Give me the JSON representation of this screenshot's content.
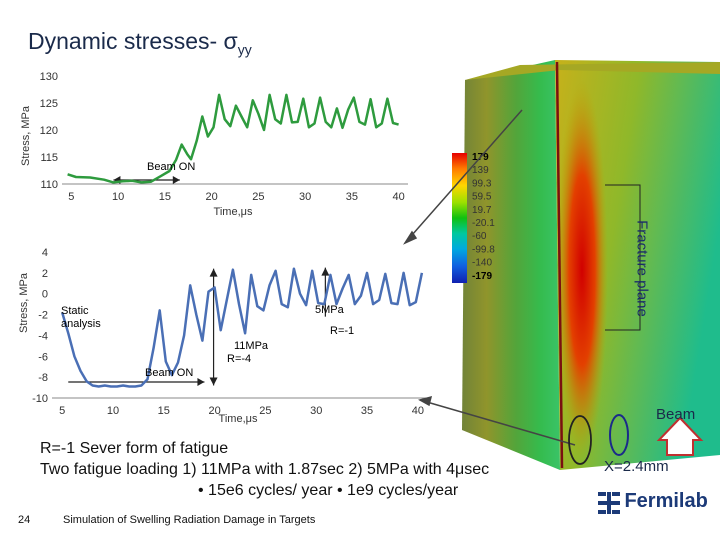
{
  "slide": {
    "title": "Dynamic stresses- σ",
    "title_subscript": "yy",
    "slide_number": "24",
    "footer": "Simulation of Swelling Radiation Damage in Targets",
    "logo_text": "Fermilab",
    "bottom_lines": [
      "R=-1 Sever form of fatigue",
      "Two fatigue loading 1) 11MPa with 1.87sec 2) 5MPa with 4μsec",
      "•  15e6  cycles/ year     •   1e9  cycles/year"
    ],
    "beam_label": "Beam",
    "x_label": "X=2.4mm",
    "fracture_plane": "Fracture plane",
    "legend_values": [
      "179",
      "139",
      "99.3",
      "59.5",
      "19.7",
      "-20.1",
      "-60",
      "-99.8",
      "-140",
      "-179"
    ]
  },
  "chart_data": [
    {
      "type": "line",
      "ylabel": "Stress, MPa",
      "xlabel": "Time,μs",
      "xlim": [
        4,
        41
      ],
      "ylim": [
        110,
        130
      ],
      "xticks": [
        "5",
        "10",
        "15",
        "20",
        "25",
        "30",
        "35",
        "40"
      ],
      "yticks": [
        "110",
        "115",
        "120",
        "125",
        "130"
      ],
      "annotation": "Beam ON",
      "series": [
        {
          "color": "#2e9b3e",
          "x": [
            4.6,
            5.5,
            7,
            8.5,
            9.5,
            10.5,
            11.5,
            12.5,
            13.5,
            14.5,
            15.5,
            16.2,
            16.8,
            17.4,
            17.8,
            18.4,
            19,
            19.6,
            20.2,
            20.8,
            21.4,
            22,
            22.6,
            23.2,
            23.8,
            24.4,
            25,
            25.6,
            26.2,
            26.8,
            27.4,
            28,
            28.6,
            29.2,
            29.8,
            30.4,
            31,
            31.6,
            32.2,
            32.8,
            33.4,
            34,
            34.6,
            35.2,
            35.8,
            36.4,
            37,
            37.6,
            38.2,
            38.8,
            39.4,
            40
          ],
          "y": [
            111.8,
            111.3,
            111.2,
            110.8,
            110.3,
            110.5,
            110.6,
            110.3,
            110.4,
            111.4,
            112.4,
            114.5,
            117.3,
            115.5,
            114.6,
            118.0,
            122.5,
            118.8,
            120.5,
            126.5,
            122.0,
            120.7,
            124.5,
            122.5,
            120.5,
            125.5,
            123.0,
            120.0,
            126.5,
            122.0,
            121.2,
            126.5,
            121.4,
            121.5,
            125.8,
            120.5,
            121.2,
            126.0,
            121.5,
            120.5,
            124.0,
            120.4,
            123.8,
            126.0,
            121.5,
            121.0,
            125.7,
            120.5,
            121.2,
            125.8,
            121.3,
            121.0
          ]
        }
      ]
    },
    {
      "type": "line",
      "ylabel": "Stress, MPa",
      "xlabel": "Time,μs",
      "xlim": [
        4,
        41
      ],
      "ylim": [
        -10,
        4
      ],
      "xticks": [
        "5",
        "10",
        "15",
        "20",
        "25",
        "30",
        "35",
        "40"
      ],
      "yticks": [
        "-10",
        "-8",
        "-6",
        "-4",
        "-2",
        "0",
        "2",
        "4"
      ],
      "annotations": [
        "Static analysis",
        "Beam ON",
        "11MPa",
        "R=-4",
        "5MPa",
        "R=-1"
      ],
      "series": [
        {
          "color": "#4a6fb5",
          "x": [
            5,
            5.6,
            6.2,
            6.8,
            7.4,
            8,
            8.6,
            9.2,
            9.8,
            10.4,
            11,
            11.6,
            12.2,
            12.8,
            13.4,
            14,
            14.6,
            15.2,
            15.8,
            16.4,
            17,
            17.6,
            18.2,
            18.8,
            19.4,
            20,
            20.6,
            21.2,
            21.8,
            22.4,
            23,
            23.6,
            24.2,
            24.8,
            25.4,
            26,
            26.6,
            27.2,
            27.8,
            28.4,
            29,
            29.6,
            30.2,
            30.8,
            31.4,
            32,
            32.6,
            33.2,
            33.8,
            34.4,
            35,
            35.6,
            36.2,
            36.8,
            37.4,
            38,
            38.6,
            39.2,
            39.8,
            40.4
          ],
          "y": [
            -1.8,
            -3.8,
            -6.0,
            -7.4,
            -8.4,
            -8.8,
            -8.9,
            -8.8,
            -8.9,
            -8.9,
            -8.8,
            -8.9,
            -8.9,
            -8.8,
            -8.2,
            -5.2,
            -1.6,
            -6.5,
            -7.8,
            -6.6,
            -4.0,
            0.8,
            -2.0,
            -4.5,
            0.2,
            0.6,
            -3.5,
            -0.6,
            2.3,
            -1.0,
            -3.8,
            1.8,
            -1.2,
            -1.6,
            0.8,
            2.2,
            -1.0,
            -1.3,
            2.4,
            0.0,
            -1.1,
            2.2,
            -0.9,
            -1.0,
            1.8,
            -1.0,
            0.5,
            1.8,
            -1.0,
            -0.2,
            2.0,
            -1.0,
            -0.6,
            1.9,
            -0.9,
            -1.0,
            2.0,
            -1.1,
            -0.8,
            2.0
          ]
        }
      ]
    }
  ]
}
